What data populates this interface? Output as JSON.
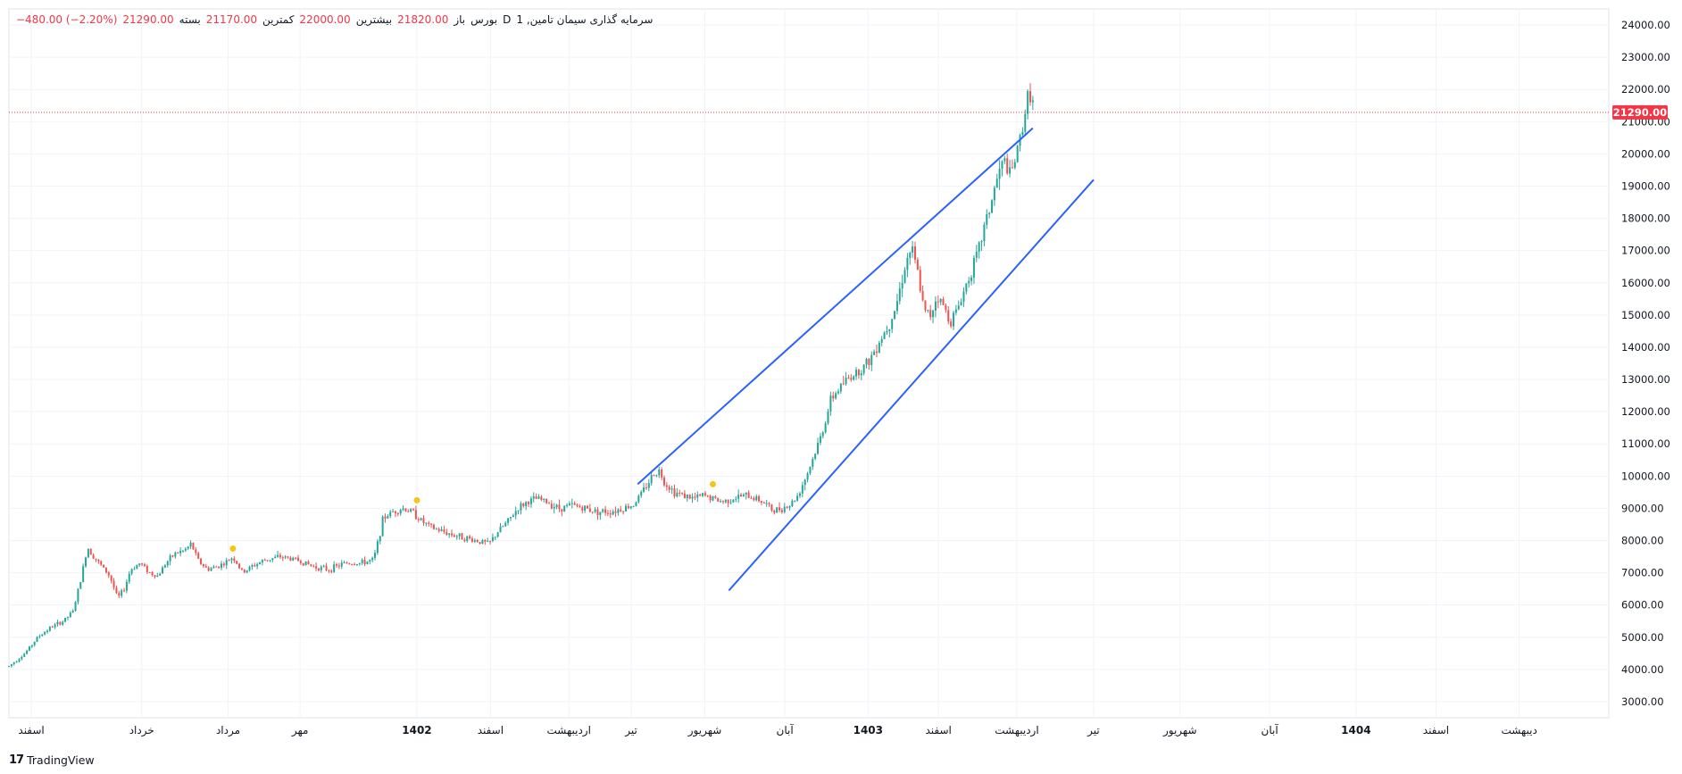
{
  "legend": {
    "symbol": "سرمایه گذاری سیمان تامین, 1",
    "interval": "D",
    "exchange": "بورس",
    "open_label": "باز",
    "open": "21820.00",
    "high_label": "بیشترین",
    "high": "22000.00",
    "low_label": "کمترین",
    "low": "21170.00",
    "close_label": "بسته",
    "close": "21290.00",
    "change": "−480.00 (−2.20%)"
  },
  "brand": {
    "logo": "17",
    "name": "TradingView"
  },
  "colors": {
    "up": "#26a69a",
    "down": "#ef5350",
    "trendline": "#2962ff",
    "last_price": "#f23645",
    "marker": "#f5c518"
  },
  "chart_data": {
    "type": "candlestick",
    "ylim": [
      2500,
      24500
    ],
    "yticks": [
      "24000.00",
      "23000.00",
      "22000.00",
      "21000.00",
      "20000.00",
      "19000.00",
      "18000.00",
      "17000.00",
      "16000.00",
      "15000.00",
      "14000.00",
      "13000.00",
      "12000.00",
      "11000.00",
      "10000.00",
      "9000.00",
      "8000.00",
      "7000.00",
      "6000.00",
      "5000.00",
      "4000.00",
      "3000.00"
    ],
    "ytick_values": [
      24000,
      23000,
      22000,
      21000,
      20000,
      19000,
      18000,
      17000,
      16000,
      15000,
      14000,
      13000,
      12000,
      11000,
      10000,
      9000,
      8000,
      7000,
      6000,
      5000,
      4000,
      3000
    ],
    "x_range": [
      0,
      1000
    ],
    "xticks": [
      {
        "x": 14,
        "label": "اسفند"
      },
      {
        "x": 83,
        "label": "خرداد"
      },
      {
        "x": 137,
        "label": "مرداد"
      },
      {
        "x": 182,
        "label": "مهر"
      },
      {
        "x": 255,
        "label": "1402",
        "bold": true
      },
      {
        "x": 301,
        "label": "اسفند"
      },
      {
        "x": 350,
        "label": "اردیبهشت"
      },
      {
        "x": 389,
        "label": "تیر"
      },
      {
        "x": 435,
        "label": "شهریور"
      },
      {
        "x": 485,
        "label": "آبان"
      },
      {
        "x": 537,
        "label": "1403",
        "bold": true
      },
      {
        "x": 581,
        "label": "اسفند"
      },
      {
        "x": 630,
        "label": "اردیبهشت"
      },
      {
        "x": 678,
        "label": "تیر"
      },
      {
        "x": 732,
        "label": "شهریور"
      },
      {
        "x": 788,
        "label": "آبان"
      },
      {
        "x": 842,
        "label": "1404",
        "bold": true
      },
      {
        "x": 892,
        "label": "اسفند"
      },
      {
        "x": 944,
        "label": "دیبهشت"
      }
    ],
    "price_path": [
      [
        0,
        4100
      ],
      [
        10,
        4500
      ],
      [
        18,
        5000
      ],
      [
        26,
        5300
      ],
      [
        34,
        5500
      ],
      [
        40,
        5800
      ],
      [
        45,
        6800
      ],
      [
        49,
        7800
      ],
      [
        53,
        7500
      ],
      [
        58,
        7200
      ],
      [
        63,
        6900
      ],
      [
        68,
        6200
      ],
      [
        72,
        6500
      ],
      [
        76,
        7100
      ],
      [
        82,
        7300
      ],
      [
        88,
        7000
      ],
      [
        93,
        6900
      ],
      [
        98,
        7300
      ],
      [
        104,
        7600
      ],
      [
        110,
        7700
      ],
      [
        114,
        7900
      ],
      [
        118,
        7400
      ],
      [
        124,
        7100
      ],
      [
        130,
        7200
      ],
      [
        135,
        7300
      ],
      [
        140,
        7500
      ],
      [
        146,
        7000
      ],
      [
        152,
        7200
      ],
      [
        160,
        7400
      ],
      [
        170,
        7500
      ],
      [
        180,
        7400
      ],
      [
        190,
        7200
      ],
      [
        200,
        7100
      ],
      [
        210,
        7300
      ],
      [
        220,
        7300
      ],
      [
        228,
        7400
      ],
      [
        234,
        8700
      ],
      [
        240,
        8900
      ],
      [
        246,
        9000
      ],
      [
        252,
        8900
      ],
      [
        258,
        8600
      ],
      [
        264,
        8400
      ],
      [
        270,
        8300
      ],
      [
        276,
        8200
      ],
      [
        284,
        8100
      ],
      [
        292,
        8000
      ],
      [
        300,
        7900
      ],
      [
        306,
        8300
      ],
      [
        312,
        8600
      ],
      [
        318,
        9000
      ],
      [
        324,
        9200
      ],
      [
        330,
        9300
      ],
      [
        336,
        9200
      ],
      [
        344,
        9000
      ],
      [
        352,
        9100
      ],
      [
        360,
        9000
      ],
      [
        368,
        8900
      ],
      [
        376,
        8900
      ],
      [
        384,
        9000
      ],
      [
        390,
        9100
      ],
      [
        396,
        9500
      ],
      [
        402,
        10000
      ],
      [
        406,
        10200
      ],
      [
        410,
        9800
      ],
      [
        416,
        9500
      ],
      [
        422,
        9400
      ],
      [
        428,
        9300
      ],
      [
        434,
        9400
      ],
      [
        440,
        9300
      ],
      [
        446,
        9200
      ],
      [
        452,
        9300
      ],
      [
        460,
        9400
      ],
      [
        468,
        9300
      ],
      [
        474,
        9100
      ],
      [
        478,
        8900
      ],
      [
        482,
        9000
      ],
      [
        488,
        9100
      ],
      [
        493,
        9400
      ],
      [
        500,
        10200
      ],
      [
        508,
        11300
      ],
      [
        514,
        12400
      ],
      [
        520,
        12800
      ],
      [
        526,
        13100
      ],
      [
        532,
        13300
      ],
      [
        538,
        13600
      ],
      [
        544,
        14200
      ],
      [
        550,
        14700
      ],
      [
        555,
        15400
      ],
      [
        560,
        16500
      ],
      [
        564,
        17100
      ],
      [
        568,
        16300
      ],
      [
        572,
        15100
      ],
      [
        576,
        15000
      ],
      [
        580,
        15600
      ],
      [
        584,
        15300
      ],
      [
        588,
        14800
      ],
      [
        592,
        15100
      ],
      [
        596,
        15600
      ],
      [
        600,
        16200
      ],
      [
        605,
        16800
      ],
      [
        610,
        17800
      ],
      [
        614,
        18500
      ],
      [
        618,
        19300
      ],
      [
        622,
        19800
      ],
      [
        626,
        19300
      ],
      [
        630,
        20000
      ],
      [
        634,
        21000
      ],
      [
        638,
        22000
      ],
      [
        641,
        21300
      ]
    ],
    "markers": [
      {
        "x": 140,
        "y": 7750
      },
      {
        "x": 255,
        "y": 9250
      },
      {
        "x": 440,
        "y": 9750
      }
    ],
    "trendlines": [
      {
        "from": [
          393,
          9750
        ],
        "to": [
          640,
          20800
        ]
      },
      {
        "from": [
          450,
          6450
        ],
        "to": [
          678,
          19200
        ]
      }
    ],
    "last_price": 21290,
    "last_price_label": "21290.00"
  }
}
